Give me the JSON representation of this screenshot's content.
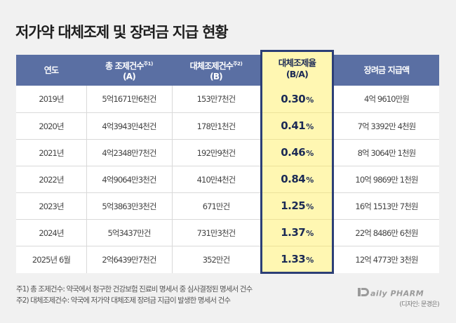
{
  "title": "저가약 대체조제 및 장려금 지급 현황",
  "headers": {
    "year": "연도",
    "total_line1": "총 조제건수",
    "total_sup": "주1)",
    "total_line2": "(A)",
    "subst_line1": "대체조제건수",
    "subst_sup": "주2)",
    "subst_line2": "(B)",
    "rate_line1": "대체조제율",
    "rate_line2": "(B/A)",
    "incentive": "장려금 지급액"
  },
  "rows": [
    {
      "year": "2019년",
      "total": "5억1671만6천건",
      "subst": "153만7천건",
      "rate": "0.30",
      "rate_unit": "%",
      "incentive": "4억 9610만원"
    },
    {
      "year": "2020년",
      "total": "4억3943만4천건",
      "subst": "178만1천건",
      "rate": "0.41",
      "rate_unit": "%",
      "incentive": "7억 3392만 4천원"
    },
    {
      "year": "2021년",
      "total": "4억2348만7천건",
      "subst": "192만9천건",
      "rate": "0.46",
      "rate_unit": "%",
      "incentive": "8억 3064만 1천원"
    },
    {
      "year": "2022년",
      "total": "4억9064만3천건",
      "subst": "410만4천건",
      "rate": "0.84",
      "rate_unit": "%",
      "incentive": "10억 9869만 1천원"
    },
    {
      "year": "2023년",
      "total": "5억3863만3천건",
      "subst": "671만건",
      "rate": "1.25",
      "rate_unit": "%",
      "incentive": "16억 1513만 7천원"
    },
    {
      "year": "2024년",
      "total": "5억3437만건",
      "subst": "731만3천건",
      "rate": "1.37",
      "rate_unit": "%",
      "incentive": "22억 8486만 6천원"
    },
    {
      "year": "2025년 6월",
      "total": "2억6439만7천건",
      "subst": "352만건",
      "rate": "1.33",
      "rate_unit": "%",
      "incentive": "12억 4773만 3천원"
    }
  ],
  "notes": [
    "주1) 총 조제건수: 약국에서 청구한 건강보험 진료비 명세서 중 심사결정된 명세서 건수",
    "주2) 대체조제건수: 약국에 저가약 대체조제 장려금 지급이 발생한 명세서 건수"
  ],
  "logo": {
    "text": "DailyPHARM"
  },
  "credit": "(디자인: 문경은)",
  "colors": {
    "header_bg": "#5a6fa3",
    "highlight_bg": "#fff7b2",
    "highlight_border": "#2c3f76",
    "page_bg": "#f1f1f1"
  }
}
